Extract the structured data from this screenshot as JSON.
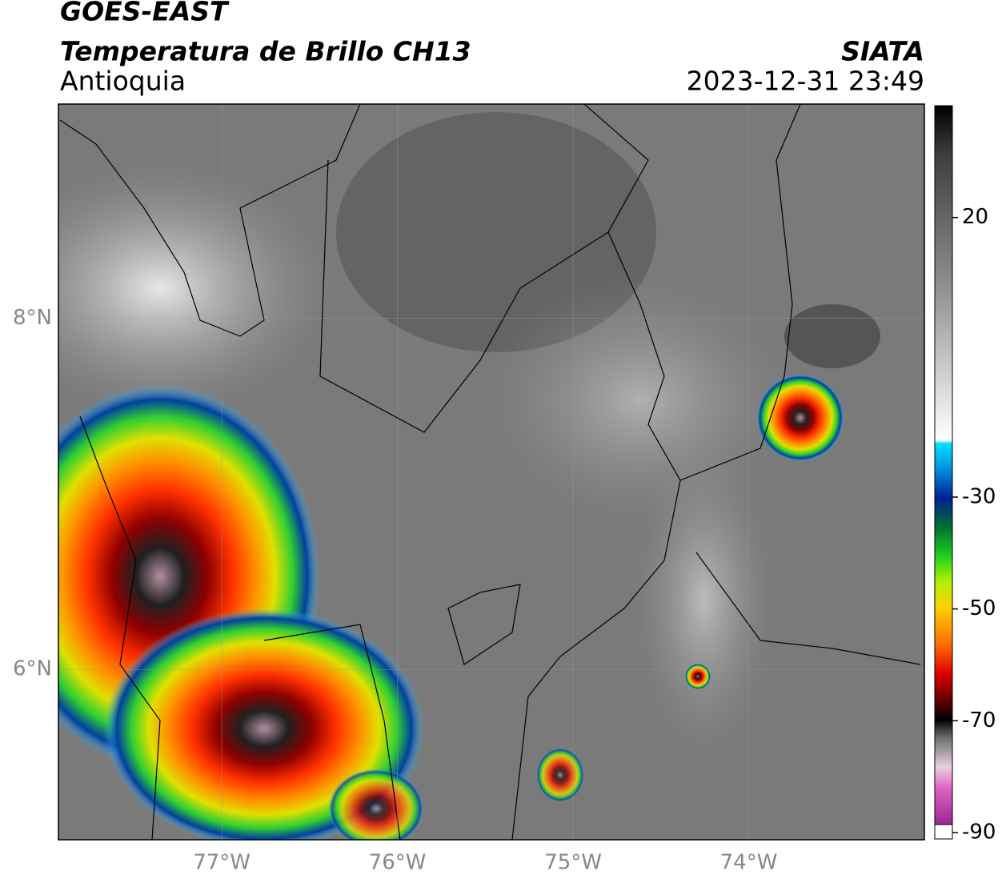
{
  "header": {
    "title": "GOES-EAST",
    "subtitle": "Temperatura de Brillo CH13",
    "region": "Antioquia",
    "source": "SIATA",
    "datetime": "2023-12-31 23:49"
  },
  "map": {
    "xlim": [
      -77.93,
      -73.0
    ],
    "ylim": [
      5.03,
      9.22
    ],
    "xticks": [
      {
        "value": -77,
        "label": "77°W"
      },
      {
        "value": -76,
        "label": "76°W"
      },
      {
        "value": -75,
        "label": "75°W"
      },
      {
        "value": -74,
        "label": "74°W"
      }
    ],
    "yticks": [
      {
        "value": 6,
        "label": "6°N"
      },
      {
        "value": 8,
        "label": "8°N"
      }
    ],
    "grid": true
  },
  "colorbar": {
    "ylim": [
      -90,
      40
    ],
    "yticks": [
      -90,
      -70,
      -50,
      -30,
      20
    ]
  }
}
